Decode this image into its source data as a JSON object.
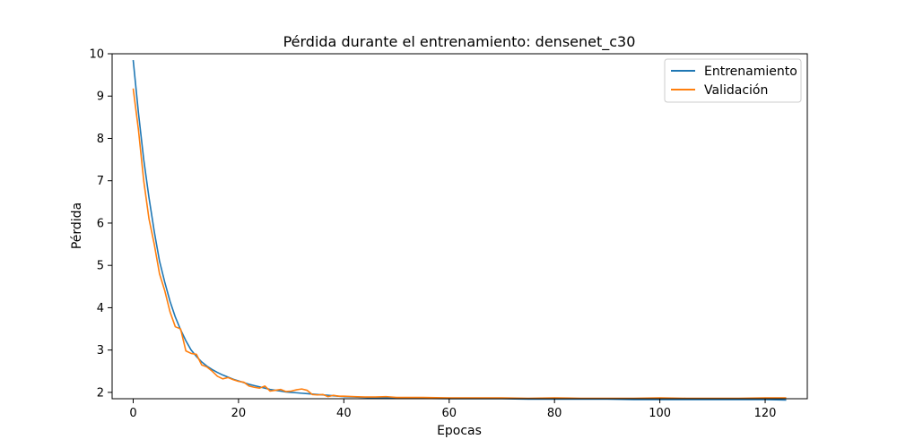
{
  "chart_data": {
    "type": "line",
    "title": "Pérdida durante el entrenamiento: densenet_c30",
    "xlabel": "Epocas",
    "ylabel": "Pérdida",
    "xlim": [
      -4,
      128
    ],
    "ylim": [
      1.85,
      10.0
    ],
    "xticks": [
      0,
      20,
      40,
      60,
      80,
      100,
      120
    ],
    "yticks": [
      2,
      3,
      4,
      5,
      6,
      7,
      8,
      9,
      10
    ],
    "legend_position": "upper right",
    "grid": false,
    "series": [
      {
        "name": "Entrenamiento",
        "color": "#1f77b4",
        "x": [
          0,
          1,
          2,
          3,
          4,
          5,
          6,
          7,
          8,
          9,
          10,
          11,
          12,
          13,
          14,
          15,
          16,
          17,
          18,
          19,
          20,
          21,
          22,
          23,
          24,
          25,
          26,
          27,
          28,
          29,
          30,
          31,
          32,
          33,
          34,
          35,
          36,
          37,
          38,
          39,
          40,
          42,
          44,
          46,
          48,
          50,
          55,
          60,
          65,
          70,
          75,
          80,
          85,
          90,
          95,
          100,
          105,
          110,
          115,
          120,
          124
        ],
        "y": [
          9.85,
          8.6,
          7.5,
          6.6,
          5.8,
          5.1,
          4.6,
          4.15,
          3.78,
          3.48,
          3.22,
          3.0,
          2.85,
          2.72,
          2.62,
          2.54,
          2.47,
          2.41,
          2.36,
          2.31,
          2.27,
          2.23,
          2.19,
          2.16,
          2.13,
          2.1,
          2.07,
          2.05,
          2.03,
          2.01,
          2.0,
          1.99,
          1.98,
          1.97,
          1.96,
          1.95,
          1.94,
          1.93,
          1.92,
          1.91,
          1.9,
          1.89,
          1.88,
          1.87,
          1.87,
          1.86,
          1.86,
          1.85,
          1.85,
          1.85,
          1.84,
          1.84,
          1.84,
          1.84,
          1.83,
          1.83,
          1.83,
          1.83,
          1.83,
          1.83,
          1.82
        ]
      },
      {
        "name": "Validación",
        "color": "#ff7f0e",
        "x": [
          0,
          1,
          2,
          3,
          4,
          5,
          6,
          7,
          8,
          9,
          10,
          11,
          12,
          13,
          14,
          15,
          16,
          17,
          18,
          19,
          20,
          21,
          22,
          23,
          24,
          25,
          26,
          27,
          28,
          29,
          30,
          31,
          32,
          33,
          34,
          35,
          36,
          37,
          38,
          39,
          40,
          42,
          44,
          46,
          48,
          50,
          55,
          60,
          65,
          70,
          75,
          80,
          85,
          90,
          95,
          100,
          105,
          110,
          115,
          120,
          124
        ],
        "y": [
          9.18,
          8.2,
          7.0,
          6.1,
          5.5,
          4.8,
          4.4,
          3.9,
          3.55,
          3.5,
          2.98,
          2.92,
          2.9,
          2.65,
          2.6,
          2.5,
          2.38,
          2.32,
          2.35,
          2.3,
          2.26,
          2.24,
          2.15,
          2.12,
          2.1,
          2.15,
          2.03,
          2.05,
          2.07,
          2.02,
          2.03,
          2.06,
          2.08,
          2.05,
          1.95,
          1.94,
          1.95,
          1.9,
          1.93,
          1.91,
          1.91,
          1.9,
          1.89,
          1.89,
          1.9,
          1.88,
          1.88,
          1.87,
          1.87,
          1.87,
          1.86,
          1.87,
          1.86,
          1.86,
          1.86,
          1.87,
          1.86,
          1.86,
          1.86,
          1.87,
          1.87
        ]
      }
    ]
  }
}
